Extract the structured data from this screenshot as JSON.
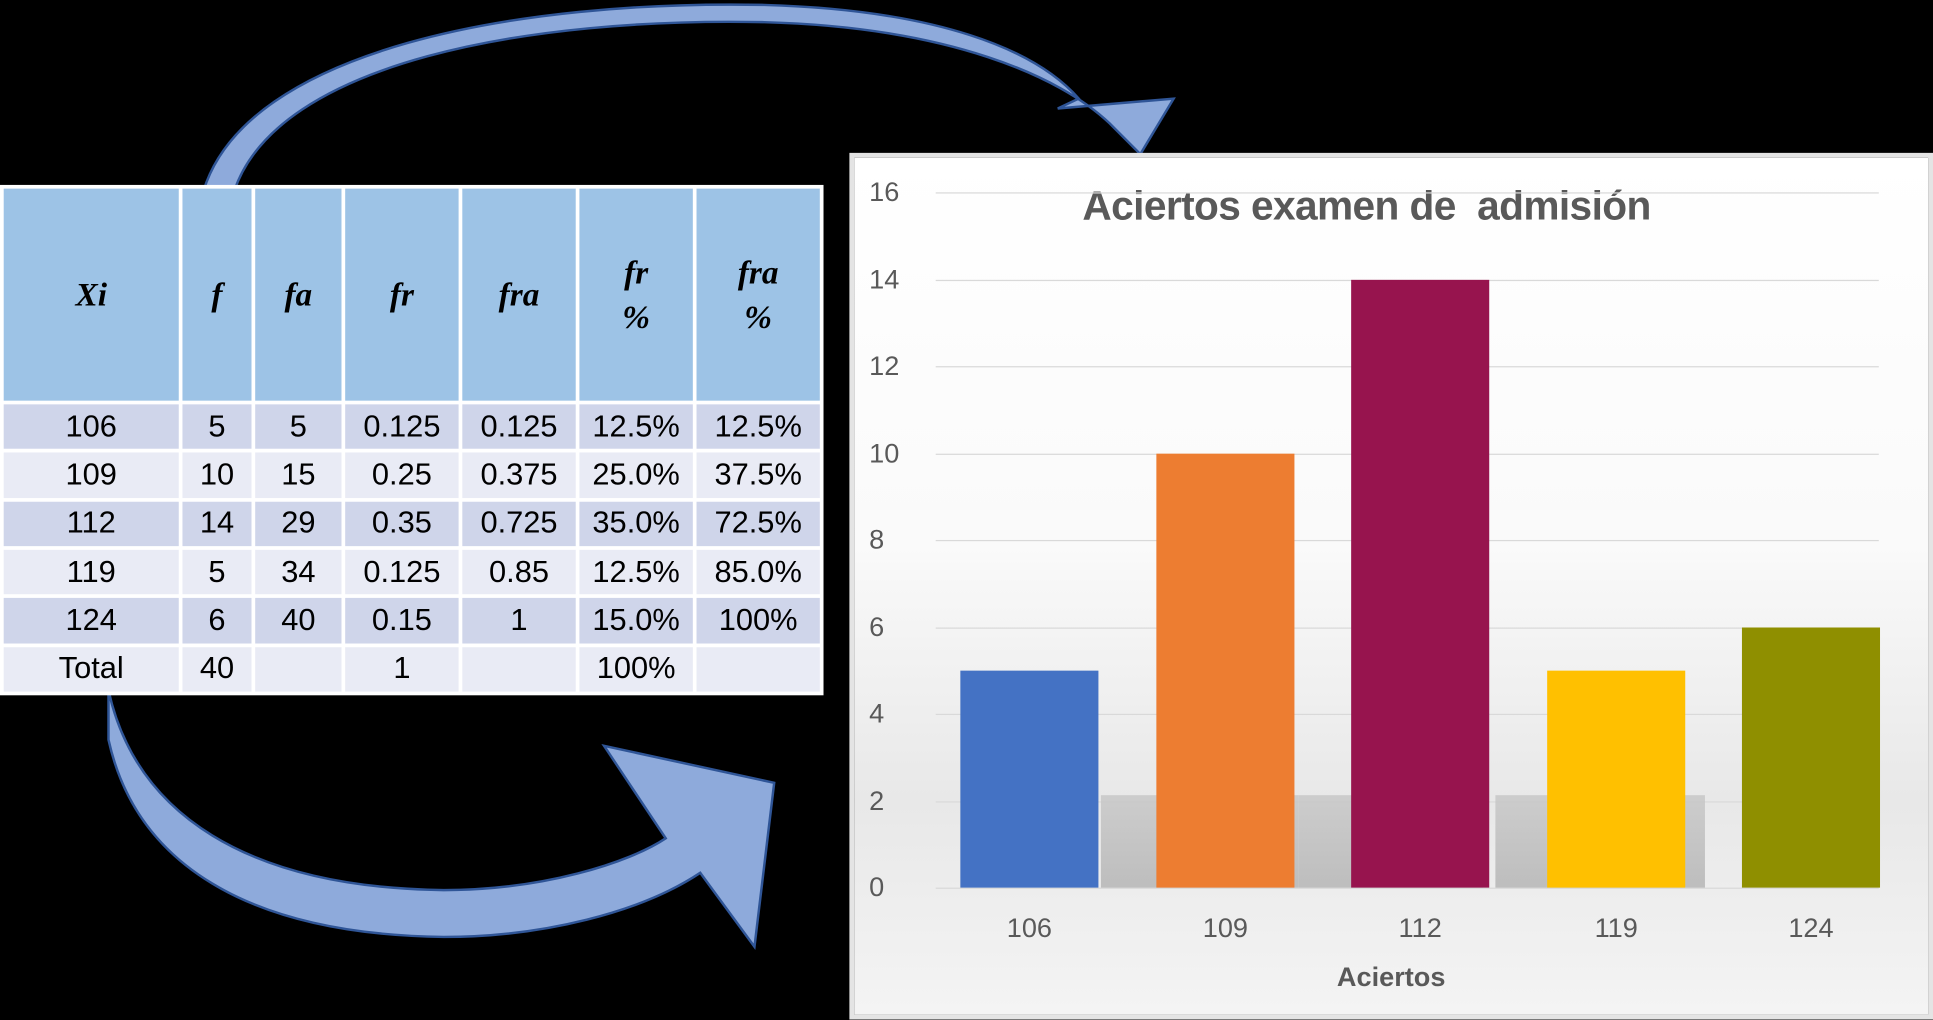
{
  "table": {
    "headers": [
      "Xi",
      "f",
      "fa",
      "fr",
      "fra",
      "fr\n%",
      "fra\n%"
    ],
    "rows": [
      [
        "106",
        "5",
        "5",
        "0.125",
        "0.125",
        "12.5%",
        "12.5%"
      ],
      [
        "109",
        "10",
        "15",
        "0.25",
        "0.375",
        "25.0%",
        "37.5%"
      ],
      [
        "112",
        "14",
        "29",
        "0.35",
        "0.725",
        "35.0%",
        "72.5%"
      ],
      [
        "119",
        "5",
        "34",
        "0.125",
        "0.85",
        "12.5%",
        "85.0%"
      ],
      [
        "124",
        "6",
        "40",
        "0.15",
        "1",
        "15.0%",
        "100%"
      ],
      [
        "Total",
        "40",
        "",
        "1",
        "",
        "100%",
        ""
      ]
    ]
  },
  "chart_data": {
    "type": "bar",
    "title": "Aciertos examen de  admisión",
    "xlabel": "Aciertos",
    "ylabel": "",
    "categories": [
      "106",
      "109",
      "112",
      "119",
      "124"
    ],
    "values": [
      5,
      10,
      14,
      5,
      6
    ],
    "colors": [
      "#4472c4",
      "#ed7d31",
      "#97144e",
      "#ffc000",
      "#8f8f00"
    ],
    "ylim": [
      0,
      16
    ],
    "yticks": [
      "0",
      "2",
      "4",
      "6",
      "8",
      "10",
      "12",
      "14",
      "16"
    ],
    "grid": true,
    "legend": "none"
  },
  "colors": {
    "header_fill": "#9dc3e6",
    "row_odd": "#cfd5ea",
    "row_even": "#e9ebf5",
    "arrow_fill": "#8eaadb",
    "arrow_stroke": "#2f5597"
  }
}
